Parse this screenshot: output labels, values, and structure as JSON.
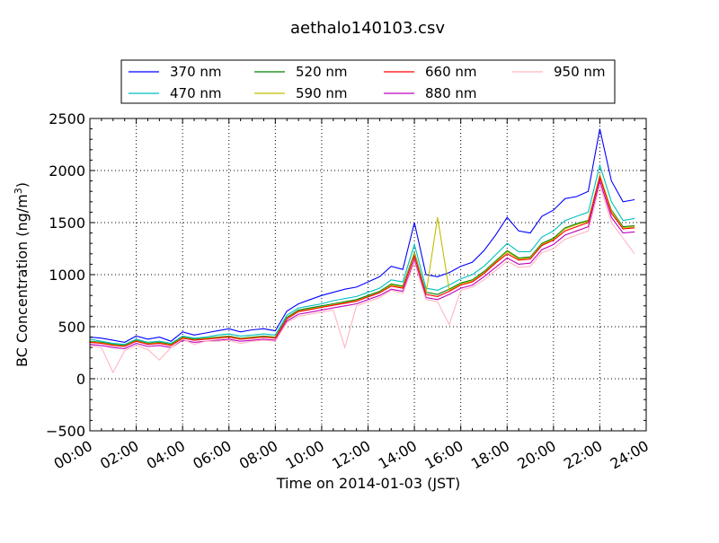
{
  "chart_data": {
    "type": "line",
    "title": "aethalo140103.csv",
    "xlabel": "Time on 2014-01-03 (JST)",
    "ylabel_main": "BC Concentration (ng/m",
    "ylabel_sup": "3",
    "ylabel_end": ")",
    "xlim_hours": [
      0,
      24
    ],
    "ylim": [
      -500,
      2500
    ],
    "grid": true,
    "legend_position": "top",
    "x_ticks": [
      {
        "hour": 0,
        "label": "00:00"
      },
      {
        "hour": 2,
        "label": "02:00"
      },
      {
        "hour": 4,
        "label": "04:00"
      },
      {
        "hour": 6,
        "label": "06:00"
      },
      {
        "hour": 8,
        "label": "08:00"
      },
      {
        "hour": 10,
        "label": "10:00"
      },
      {
        "hour": 12,
        "label": "12:00"
      },
      {
        "hour": 14,
        "label": "14:00"
      },
      {
        "hour": 16,
        "label": "16:00"
      },
      {
        "hour": 18,
        "label": "18:00"
      },
      {
        "hour": 20,
        "label": "20:00"
      },
      {
        "hour": 22,
        "label": "22:00"
      },
      {
        "hour": 24,
        "label": "24:00"
      }
    ],
    "y_ticks": [
      {
        "value": -500,
        "label": "−500"
      },
      {
        "value": 0,
        "label": "0"
      },
      {
        "value": 500,
        "label": "500"
      },
      {
        "value": 1000,
        "label": "1000"
      },
      {
        "value": 1500,
        "label": "1500"
      },
      {
        "value": 2000,
        "label": "2000"
      },
      {
        "value": 2500,
        "label": "2500"
      }
    ],
    "x_hours": [
      0,
      0.5,
      1,
      1.5,
      2,
      2.5,
      3,
      3.5,
      4,
      4.5,
      5,
      5.5,
      6,
      6.5,
      7,
      7.5,
      8,
      8.5,
      9,
      9.5,
      10,
      10.5,
      11,
      11.5,
      12,
      12.5,
      13,
      13.5,
      14,
      14.5,
      15,
      15.5,
      16,
      16.5,
      17,
      17.5,
      18,
      18.5,
      19,
      19.5,
      20,
      20.5,
      21,
      21.5,
      22,
      22.5,
      23,
      23.5
    ],
    "series": [
      {
        "name": "370 nm",
        "color": "#0000ff",
        "values": [
          400,
          390,
          370,
          350,
          410,
          380,
          400,
          360,
          450,
          420,
          440,
          460,
          480,
          450,
          470,
          480,
          460,
          650,
          720,
          760,
          800,
          830,
          860,
          880,
          930,
          980,
          1080,
          1050,
          1500,
          1000,
          980,
          1020,
          1080,
          1120,
          1230,
          1380,
          1550,
          1420,
          1400,
          1560,
          1620,
          1730,
          1750,
          1800,
          2400,
          1900,
          1700,
          1720
        ]
      },
      {
        "name": "470 nm",
        "color": "#00bfbf",
        "values": [
          380,
          360,
          340,
          330,
          380,
          350,
          360,
          340,
          410,
          390,
          400,
          420,
          430,
          410,
          420,
          430,
          420,
          610,
          680,
          700,
          720,
          750,
          770,
          790,
          830,
          870,
          950,
          930,
          1290,
          870,
          850,
          900,
          960,
          1000,
          1080,
          1190,
          1300,
          1220,
          1220,
          1360,
          1420,
          1520,
          1560,
          1600,
          2050,
          1700,
          1520,
          1540
        ]
      },
      {
        "name": "520 nm",
        "color": "#007f00",
        "values": [
          360,
          350,
          330,
          320,
          370,
          340,
          350,
          330,
          400,
          380,
          390,
          400,
          410,
          390,
          400,
          410,
          400,
          590,
          660,
          680,
          700,
          720,
          740,
          760,
          800,
          840,
          910,
          890,
          1210,
          830,
          810,
          860,
          920,
          950,
          1030,
          1130,
          1230,
          1160,
          1170,
          1300,
          1350,
          1450,
          1490,
          1520,
          1950,
          1620,
          1460,
          1470
        ]
      },
      {
        "name": "590 nm",
        "color": "#bfbf00",
        "values": [
          355,
          345,
          325,
          315,
          365,
          335,
          345,
          325,
          395,
          375,
          385,
          395,
          405,
          385,
          395,
          405,
          395,
          580,
          650,
          670,
          690,
          710,
          730,
          750,
          790,
          830,
          900,
          880,
          1200,
          820,
          1550,
          850,
          910,
          940,
          1020,
          1120,
          1220,
          1150,
          1160,
          1290,
          1340,
          1440,
          1480,
          1510,
          1960,
          1610,
          1450,
          1460
        ]
      },
      {
        "name": "660 nm",
        "color": "#ff0000",
        "values": [
          350,
          340,
          320,
          310,
          360,
          330,
          340,
          320,
          390,
          370,
          380,
          390,
          400,
          380,
          390,
          400,
          390,
          575,
          645,
          665,
          685,
          705,
          725,
          745,
          785,
          825,
          890,
          870,
          1180,
          810,
          790,
          840,
          900,
          930,
          1010,
          1110,
          1200,
          1140,
          1150,
          1280,
          1330,
          1420,
          1460,
          1500,
          1940,
          1590,
          1440,
          1450
        ]
      },
      {
        "name": "880 nm",
        "color": "#bf00bf",
        "values": [
          330,
          320,
          300,
          290,
          340,
          310,
          320,
          300,
          370,
          350,
          360,
          370,
          380,
          360,
          370,
          380,
          370,
          555,
          620,
          640,
          660,
          680,
          700,
          720,
          760,
          800,
          860,
          840,
          1140,
          780,
          760,
          810,
          870,
          900,
          980,
          1070,
          1160,
          1100,
          1110,
          1240,
          1290,
          1380,
          1420,
          1460,
          1900,
          1550,
          1400,
          1410
        ]
      },
      {
        "name": "950 nm",
        "color": "#ffb6c1",
        "values": [
          320,
          300,
          60,
          270,
          320,
          280,
          180,
          300,
          380,
          330,
          360,
          360,
          370,
          340,
          360,
          370,
          360,
          540,
          600,
          620,
          640,
          660,
          300,
          700,
          740,
          780,
          850,
          820,
          1120,
          760,
          740,
          520,
          850,
          880,
          950,
          1040,
          1130,
          1070,
          1080,
          1210,
          1250,
          1340,
          1380,
          1420,
          1860,
          1500,
          1350,
          1200
        ]
      }
    ]
  }
}
